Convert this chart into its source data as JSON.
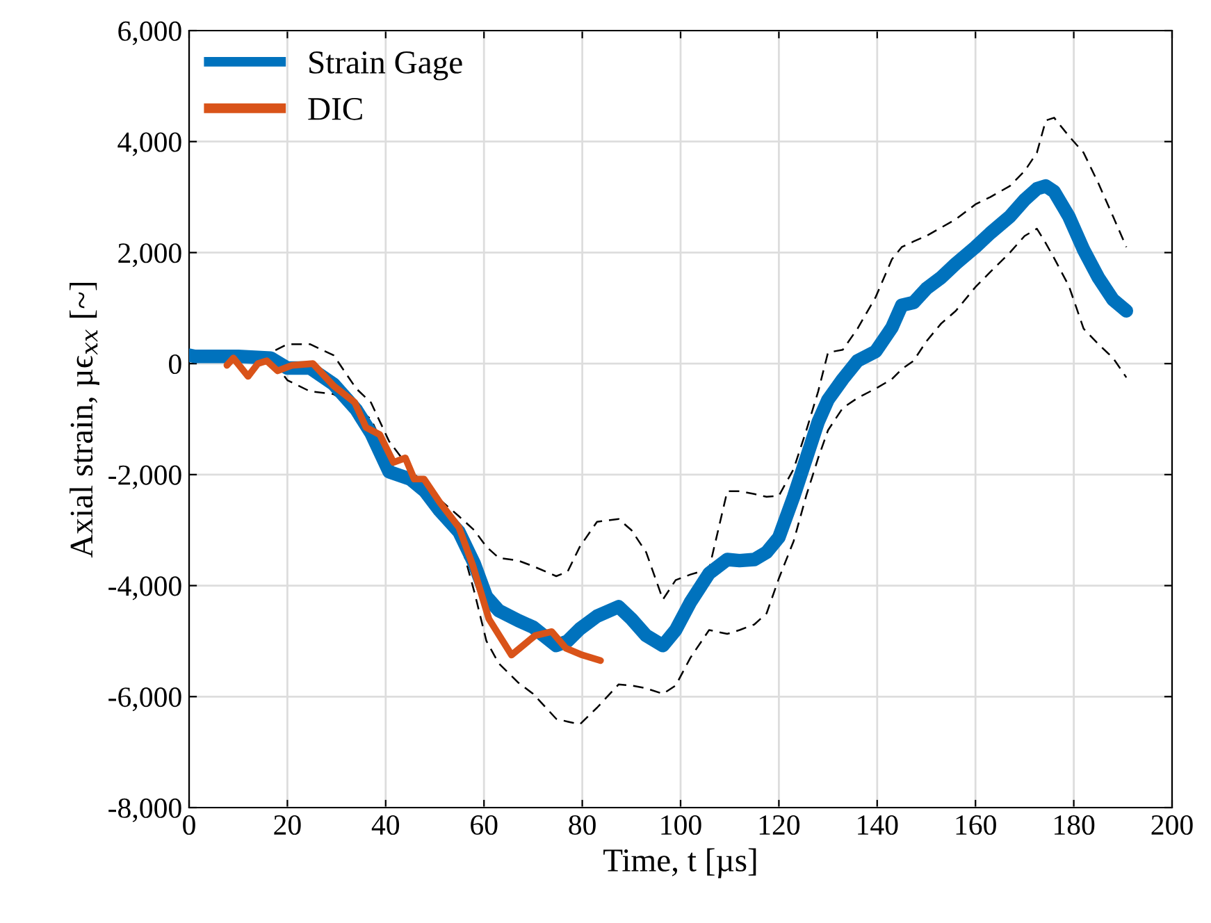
{
  "chart_data": {
    "type": "line",
    "xlabel": "Time, t [µs]",
    "ylabel": "Axial strain, µϵ$_{xx}$ [~]",
    "xlim": [
      0,
      200
    ],
    "xticks": [
      0,
      20,
      40,
      60,
      80,
      100,
      120,
      140,
      160,
      180,
      200
    ],
    "ylim": [
      -8000,
      6000
    ],
    "yticks": [
      {
        "value": -8000,
        "label": "-8,000"
      },
      {
        "value": -6000,
        "label": "-6,000"
      },
      {
        "value": -4000,
        "label": "-4,000"
      },
      {
        "value": -2000,
        "label": "-2,000"
      },
      0,
      {
        "value": 2000,
        "label": "2,000"
      },
      {
        "value": 4000,
        "label": "4,000"
      },
      {
        "value": 6000,
        "label": "6,000"
      }
    ],
    "grid": true,
    "legend": "top left",
    "line_style": "solid",
    "marker": "none",
    "series": [
      {
        "name": "Strain Gage",
        "color": "#0072bd",
        "x": [
          0,
          1.2,
          10,
          16.6,
          20,
          24.6,
          29.4,
          34,
          37,
          40.7,
          45,
          48,
          51,
          54.9,
          58,
          60.5,
          63,
          67,
          70,
          74.7,
          77,
          79.5,
          83,
          87.4,
          90,
          93,
          96.4,
          99,
          102,
          105.8,
          109.5,
          112,
          115,
          117.5,
          120,
          123,
          125.6,
          128,
          130,
          133,
          136,
          139.7,
          143,
          145,
          147.4,
          150,
          153,
          156,
          160,
          163,
          167,
          170,
          172.5,
          174.3,
          176,
          179,
          182,
          185,
          188,
          190.7
        ],
        "values": [
          150,
          130,
          130,
          100,
          -80,
          -80,
          -370,
          -830,
          -1250,
          -1950,
          -2080,
          -2300,
          -2650,
          -3030,
          -3600,
          -4200,
          -4450,
          -4630,
          -4750,
          -5080,
          -5000,
          -4780,
          -4550,
          -4380,
          -4600,
          -4900,
          -5080,
          -4800,
          -4300,
          -3780,
          -3530,
          -3550,
          -3530,
          -3400,
          -3130,
          -2400,
          -1700,
          -1050,
          -650,
          -280,
          50,
          220,
          650,
          1050,
          1100,
          1350,
          1550,
          1800,
          2100,
          2350,
          2650,
          2950,
          3150,
          3200,
          3100,
          2650,
          2050,
          1550,
          1150,
          950
        ]
      },
      {
        "color": "#000000",
        "line_style": "dashed",
        "x": [
          0,
          1.2,
          10,
          16.6,
          20,
          24.6,
          29.4,
          34,
          37,
          40.7,
          45,
          48,
          51,
          54.9,
          58,
          60.5,
          63,
          67,
          70,
          74.7,
          77,
          79.5,
          83,
          87.4,
          90,
          93,
          96.4,
          99,
          102,
          105.8,
          109.5,
          112,
          115,
          117.5,
          120,
          123,
          125.6,
          128,
          130,
          133,
          136,
          139.7,
          143,
          145,
          147.4,
          150,
          153,
          156,
          160,
          163,
          167,
          170,
          172.5,
          174.3,
          176,
          179,
          182,
          185,
          188,
          190.7
        ],
        "values": [
          100,
          100,
          100,
          100,
          -300,
          -500,
          -550,
          -800,
          -1000,
          -1700,
          -2200,
          -2400,
          -2650,
          -3100,
          -4100,
          -5000,
          -5400,
          -5750,
          -5950,
          -6400,
          -6450,
          -6500,
          -6200,
          -5780,
          -5800,
          -5850,
          -5950,
          -5800,
          -5300,
          -4800,
          -4870,
          -4800,
          -4700,
          -4500,
          -3870,
          -3200,
          -2370,
          -1700,
          -1200,
          -800,
          -620,
          -450,
          -280,
          -100,
          50,
          400,
          720,
          950,
          1380,
          1650,
          2000,
          2300,
          2430,
          2170,
          1900,
          1400,
          630,
          350,
          100,
          -250
        ]
      },
      {
        "color": "#000000",
        "line_style": "dashed",
        "x": [
          0,
          1.2,
          10,
          16.6,
          20,
          24.6,
          29.4,
          34,
          37,
          40.7,
          45,
          48,
          51,
          54.9,
          58,
          60.5,
          63,
          67,
          70,
          74.7,
          77,
          79.5,
          83,
          87.4,
          90,
          93,
          96.4,
          99,
          102,
          105.8,
          109.5,
          112,
          115,
          117.5,
          120,
          123,
          125.6,
          128,
          130,
          133,
          136,
          139.7,
          143,
          145,
          147.4,
          150,
          153,
          156,
          160,
          163,
          167,
          170,
          172.5,
          174.3,
          176,
          179,
          182,
          185,
          188,
          190.7
        ],
        "values": [
          200,
          200,
          200,
          200,
          350,
          350,
          150,
          -450,
          -700,
          -1400,
          -1900,
          -2200,
          -2450,
          -2750,
          -3000,
          -3300,
          -3500,
          -3550,
          -3650,
          -3830,
          -3750,
          -3300,
          -2850,
          -2800,
          -3000,
          -3400,
          -4250,
          -3900,
          -3800,
          -3700,
          -2300,
          -2300,
          -2350,
          -2400,
          -2380,
          -1900,
          -1200,
          -500,
          200,
          250,
          630,
          1200,
          1880,
          2100,
          2200,
          2300,
          2450,
          2600,
          2870,
          3000,
          3200,
          3470,
          3800,
          4380,
          4430,
          4100,
          3800,
          3250,
          2650,
          2100
        ]
      },
      {
        "name": "DIC",
        "color": "#d95319",
        "x": [
          7.7,
          9,
          12,
          14,
          15.8,
          18,
          21,
          25.2,
          29.4,
          33.7,
          36,
          38.8,
          41.6,
          44,
          45.8,
          47.8,
          51,
          54.9,
          57.7,
          61,
          65.6,
          70.4,
          73.8,
          76.7,
          80,
          83.7
        ],
        "values": [
          -30,
          100,
          -230,
          0,
          50,
          -130,
          -30,
          0,
          -400,
          -700,
          -1150,
          -1280,
          -1780,
          -1700,
          -2080,
          -2080,
          -2500,
          -2950,
          -3630,
          -4600,
          -5250,
          -4900,
          -4830,
          -5130,
          -5250,
          -5350
        ]
      }
    ]
  }
}
